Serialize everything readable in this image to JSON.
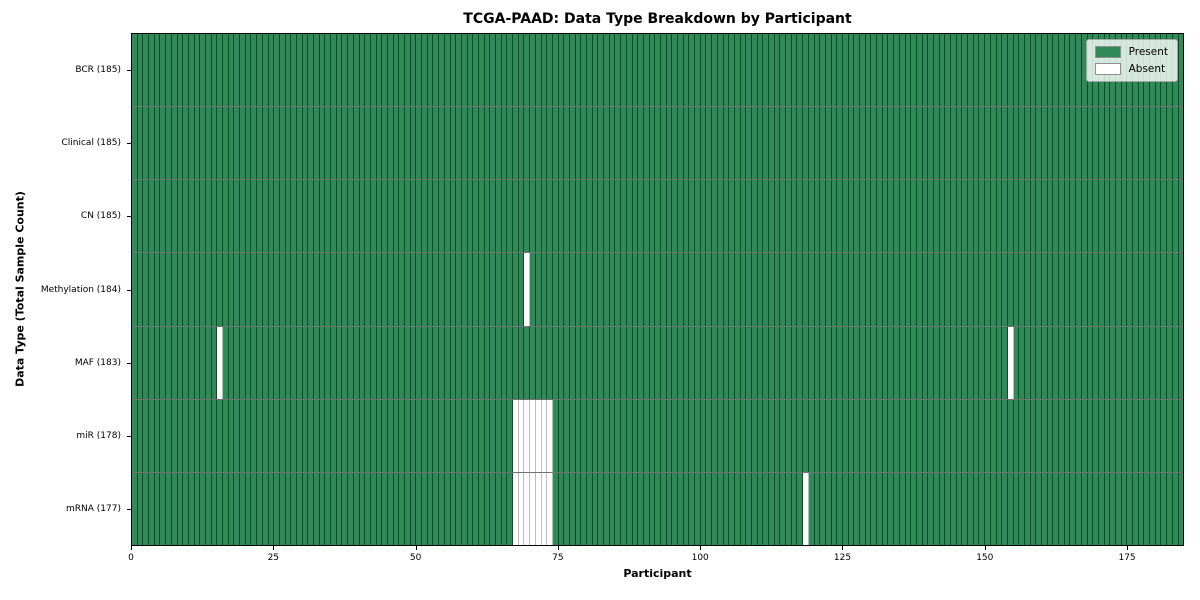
{
  "chart_data": {
    "type": "heatmap",
    "title": "TCGA-PAAD: Data Type Breakdown by Participant",
    "xlabel": "Participant",
    "ylabel": "Data Type (Total Sample Count)",
    "n_participants": 185,
    "x_ticks": [
      0,
      25,
      50,
      75,
      100,
      125,
      150,
      175
    ],
    "x_range": [
      0,
      185
    ],
    "grid": "cell-borders",
    "legend_position": "upper right",
    "rows": [
      {
        "label": "BCR (185)",
        "data_type": "BCR",
        "present_count": 185,
        "absent_participants": []
      },
      {
        "label": "Clinical (185)",
        "data_type": "Clinical",
        "present_count": 185,
        "absent_participants": []
      },
      {
        "label": "CN (185)",
        "data_type": "CN",
        "present_count": 185,
        "absent_participants": []
      },
      {
        "label": "Methylation (184)",
        "data_type": "Methylation",
        "present_count": 184,
        "absent_participants": [
          69
        ]
      },
      {
        "label": "MAF (183)",
        "data_type": "MAF",
        "present_count": 183,
        "absent_participants": [
          15,
          154
        ]
      },
      {
        "label": "miR (178)",
        "data_type": "miR",
        "present_count": 178,
        "absent_participants": [
          67,
          68,
          69,
          70,
          71,
          72,
          73
        ]
      },
      {
        "label": "mRNA (177)",
        "data_type": "mRNA",
        "present_count": 177,
        "absent_participants": [
          67,
          68,
          69,
          70,
          71,
          72,
          73,
          118
        ]
      }
    ],
    "legend": [
      {
        "label": "Present",
        "color": "#2e8b57"
      },
      {
        "label": "Absent",
        "color": "#ffffff"
      }
    ],
    "colors": {
      "present": "#2e8b57",
      "absent": "#ffffff",
      "cell_edge": "rgba(0,0,0,0.5)",
      "row_separator": "rgba(0,0,0,0.55)",
      "axis": "#000000"
    }
  }
}
